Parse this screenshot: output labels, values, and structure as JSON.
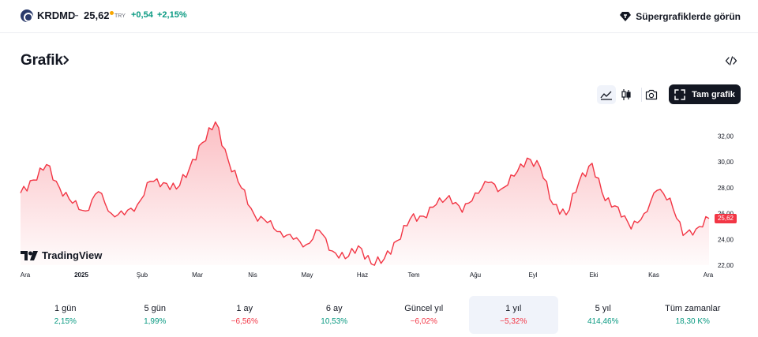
{
  "header": {
    "symbol": "KRDMD",
    "dash": "−",
    "price": "25,62",
    "currency": "TRY",
    "change": "+0,54",
    "change_pct": "+2,15%",
    "super_link_label": "Süpergrafiklerde görün"
  },
  "section": {
    "title": "Grafik"
  },
  "toolbar": {
    "fullscreen_label": "Tam grafik"
  },
  "watermark": "TradingView",
  "colors": {
    "line": "#f23645",
    "positive": "#089981",
    "negative": "#f23645",
    "dark_button": "#131722"
  },
  "chart_data": {
    "type": "area",
    "x": [
      "2024-12-01",
      "2024-12-08",
      "2024-12-15",
      "2024-12-22",
      "2024-12-29",
      "2025-01-05",
      "2025-01-12",
      "2025-01-19",
      "2025-01-26",
      "2025-02-02",
      "2025-02-09",
      "2025-02-16",
      "2025-02-23",
      "2025-03-02",
      "2025-03-09",
      "2025-03-16",
      "2025-03-23",
      "2025-03-30",
      "2025-04-06",
      "2025-04-13",
      "2025-04-20",
      "2025-04-27",
      "2025-05-04",
      "2025-05-11",
      "2025-05-18",
      "2025-05-25",
      "2025-06-01",
      "2025-06-08",
      "2025-06-15",
      "2025-06-22",
      "2025-06-29",
      "2025-07-06",
      "2025-07-13",
      "2025-07-20",
      "2025-07-27",
      "2025-08-03",
      "2025-08-10",
      "2025-08-17",
      "2025-08-24",
      "2025-08-31",
      "2025-09-07",
      "2025-09-14",
      "2025-09-21",
      "2025-09-28",
      "2025-10-05",
      "2025-10-12",
      "2025-10-19",
      "2025-10-26",
      "2025-11-02",
      "2025-11-09",
      "2025-11-16",
      "2025-11-23",
      "2025-11-30",
      "2025-12-07"
    ],
    "values": [
      27.6,
      28.6,
      29.8,
      28.0,
      26.8,
      26.2,
      27.7,
      26.0,
      25.9,
      26.7,
      28.5,
      28.4,
      27.9,
      29.5,
      31.5,
      33.1,
      30.1,
      28.0,
      25.9,
      25.3,
      24.6,
      24.0,
      23.6,
      24.7,
      23.1,
      22.5,
      23.5,
      22.1,
      22.5,
      23.9,
      25.6,
      25.8,
      26.7,
      27.4,
      26.1,
      27.6,
      28.4,
      27.9,
      28.9,
      30.3,
      29.6,
      26.7,
      25.9,
      28.5,
      29.9,
      27.0,
      26.5,
      24.8,
      26.0,
      27.8,
      27.2,
      24.3,
      24.8,
      25.62
    ],
    "x_ticks": [
      "Ara",
      "2025",
      "Şub",
      "Mar",
      "Nis",
      "May",
      "Haz",
      "Tem",
      "Ağu",
      "Eyl",
      "Eki",
      "Kas",
      "Ara"
    ],
    "y_ticks": [
      "22,00",
      "24,00",
      "26,00",
      "28,00",
      "30,00",
      "32,00"
    ],
    "ylim": [
      22,
      33.5
    ],
    "last_value_label": "25,62",
    "grid": false
  },
  "periods": [
    {
      "label": "1 gün",
      "value": "2,15%",
      "sign": "pos"
    },
    {
      "label": "5 gün",
      "value": "1,99%",
      "sign": "pos"
    },
    {
      "label": "1 ay",
      "value": "−6,56%",
      "sign": "neg"
    },
    {
      "label": "6 ay",
      "value": "10,53%",
      "sign": "pos"
    },
    {
      "label": "Güncel yıl",
      "value": "−6,02%",
      "sign": "neg"
    },
    {
      "label": "1 yıl",
      "value": "−5,32%",
      "sign": "neg",
      "selected": true
    },
    {
      "label": "5 yıl",
      "value": "414,46%",
      "sign": "pos"
    },
    {
      "label": "Tüm zamanlar",
      "value": "18,30 K%",
      "sign": "pos"
    }
  ]
}
